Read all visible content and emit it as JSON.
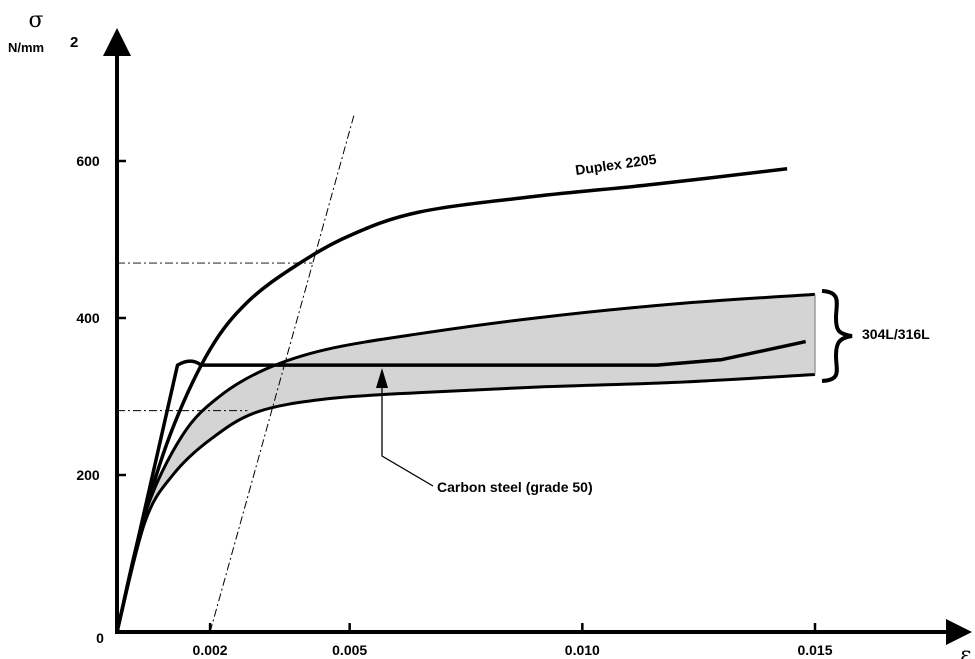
{
  "chart_data": {
    "type": "line",
    "y_axis": {
      "symbol": "σ",
      "unit": "N/mm",
      "unit_exp": "2",
      "range": [
        0,
        700
      ]
    },
    "x_axis": {
      "symbol": "ε",
      "range": [
        0,
        0.0185
      ]
    },
    "origin_label": "0",
    "y_ticks": [
      {
        "value": 200,
        "label": "200"
      },
      {
        "value": 400,
        "label": "400"
      },
      {
        "value": 600,
        "label": "600"
      }
    ],
    "x_ticks": [
      {
        "value": 0.002,
        "label": "0.002"
      },
      {
        "value": 0.005,
        "label": "0.005"
      },
      {
        "value": 0.01,
        "label": "0.010"
      },
      {
        "value": 0.015,
        "label": "0.015"
      }
    ],
    "series": [
      {
        "name": "Duplex 2205",
        "points": [
          [
            0,
            0
          ],
          [
            0.0006,
            150
          ],
          [
            0.0012,
            260
          ],
          [
            0.002,
            360
          ],
          [
            0.0028,
            420
          ],
          [
            0.0038,
            465
          ],
          [
            0.005,
            505
          ],
          [
            0.0065,
            535
          ],
          [
            0.009,
            555
          ],
          [
            0.0115,
            570
          ],
          [
            0.0144,
            590
          ]
        ]
      },
      {
        "name": "Carbon steel (grade 50)",
        "points": [
          [
            0,
            0
          ],
          [
            0.0013,
            340
          ],
          [
            0.0016,
            345
          ],
          [
            0.0018,
            340
          ],
          [
            0.003,
            340
          ],
          [
            0.006,
            340
          ],
          [
            0.009,
            340
          ],
          [
            0.0116,
            340
          ],
          [
            0.013,
            347
          ],
          [
            0.0148,
            370
          ]
        ]
      },
      {
        "name": "304L/316L",
        "band": true,
        "upper": [
          [
            0,
            0
          ],
          [
            0.0006,
            150
          ],
          [
            0.0014,
            250
          ],
          [
            0.0022,
            300
          ],
          [
            0.0032,
            335
          ],
          [
            0.0045,
            360
          ],
          [
            0.0065,
            380
          ],
          [
            0.009,
            400
          ],
          [
            0.012,
            418
          ],
          [
            0.015,
            430
          ]
        ],
        "lower": [
          [
            0,
            0
          ],
          [
            0.0006,
            140
          ],
          [
            0.0012,
            200
          ],
          [
            0.002,
            245
          ],
          [
            0.003,
            280
          ],
          [
            0.0045,
            297
          ],
          [
            0.0065,
            305
          ],
          [
            0.009,
            312
          ],
          [
            0.012,
            318
          ],
          [
            0.015,
            328
          ]
        ]
      }
    ],
    "offset_line": {
      "x_start": 0.002,
      "y_start": 0,
      "x_end": 0.0051,
      "y_end": 660
    },
    "reference_lines": [
      {
        "y": 470
      },
      {
        "y": 282
      }
    ],
    "annotations": {
      "duplex": "Duplex 2205",
      "stainless": "304L/316L",
      "carbon": "Carbon steel (grade 50)"
    }
  }
}
